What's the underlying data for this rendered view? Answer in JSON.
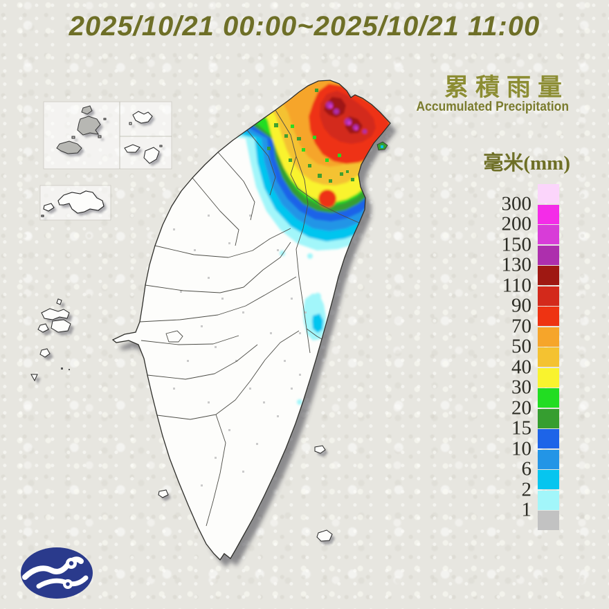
{
  "title": {
    "text": "2025/10/21 00:00~2025/10/21 11:00"
  },
  "header": {
    "title_zh": "累積雨量",
    "title_en": "Accumulated Precipitation",
    "unit": "毫米(mm)"
  },
  "legend": {
    "levels": [
      {
        "value": "",
        "color": "#fbd5fb"
      },
      {
        "value": "300",
        "color": "#f42ce8"
      },
      {
        "value": "200",
        "color": "#d83cd8"
      },
      {
        "value": "150",
        "color": "#ad2fad"
      },
      {
        "value": "130",
        "color": "#9f1812"
      },
      {
        "value": "110",
        "color": "#d3291b"
      },
      {
        "value": "90",
        "color": "#ee3312"
      },
      {
        "value": "70",
        "color": "#f6a52a"
      },
      {
        "value": "50",
        "color": "#f4c231"
      },
      {
        "value": "40",
        "color": "#f9f32e"
      },
      {
        "value": "30",
        "color": "#22dd22"
      },
      {
        "value": "20",
        "color": "#369e30"
      },
      {
        "value": "15",
        "color": "#1d64e8"
      },
      {
        "value": "10",
        "color": "#2395e6"
      },
      {
        "value": "6",
        "color": "#06c5ef"
      },
      {
        "value": "2",
        "color": "#a2f6fa"
      },
      {
        "value": "1",
        "color": "#c2c2c2"
      }
    ]
  },
  "palette": {
    "max": "#fbd5fb",
    "300": "#f42ce8",
    "200": "#d83cd8",
    "150": "#ad2fad",
    "130": "#9f1812",
    "110": "#d3291b",
    "90": "#ee3312",
    "70": "#f6a52a",
    "50": "#f4c231",
    "40": "#f9f32e",
    "30": "#22dd22",
    "20": "#369e30",
    "15": "#1d64e8",
    "10": "#2395e6",
    "6": "#06c5ef",
    "2": "#a2f6fa",
    "1": "#c2c2c2"
  },
  "logo": {
    "color": "#2a3a8c"
  }
}
